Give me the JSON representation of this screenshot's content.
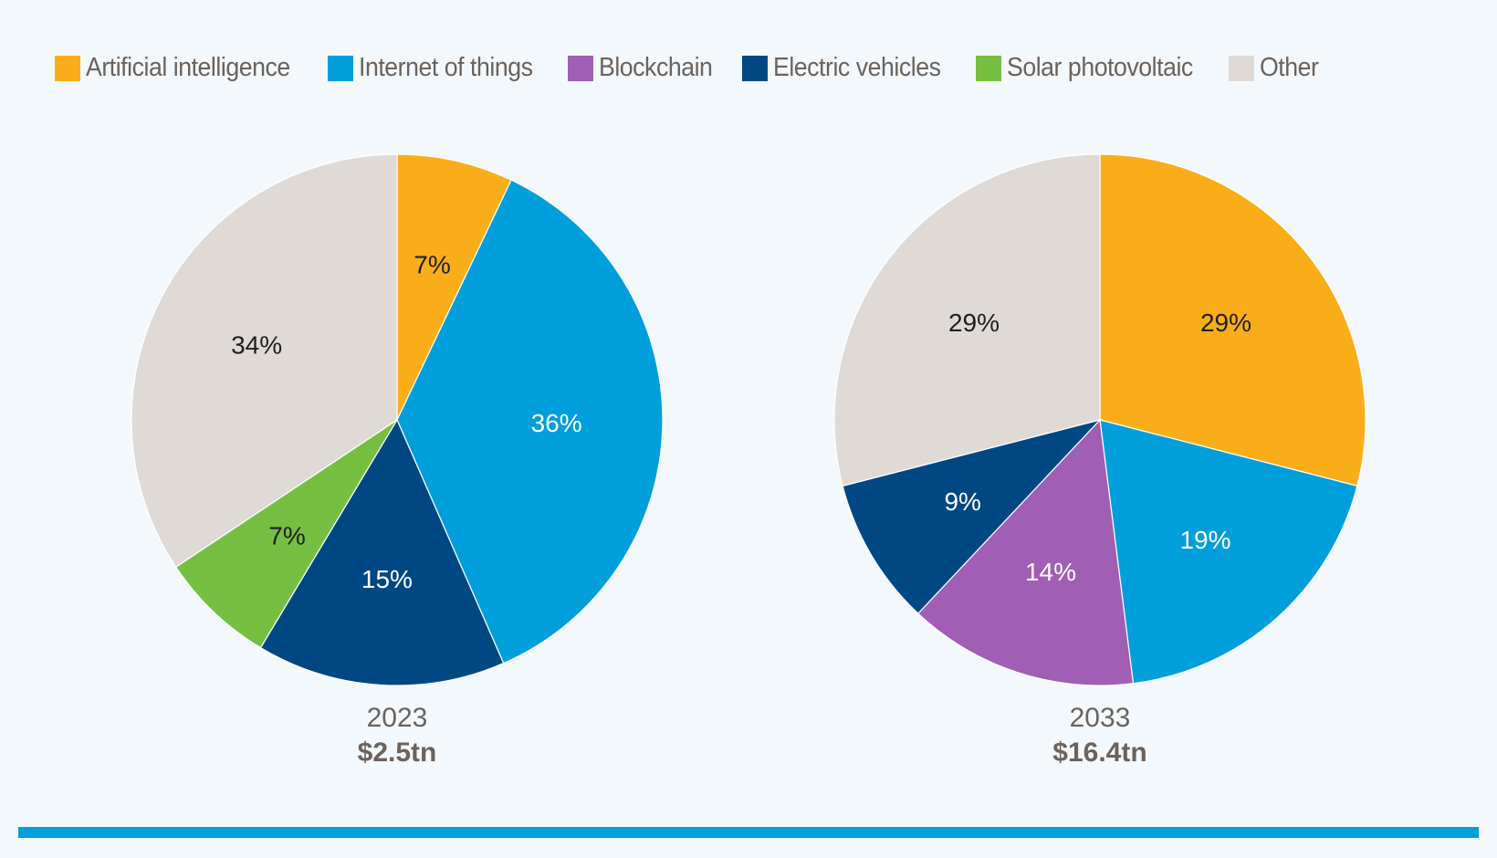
{
  "legend": [
    {
      "label": "Artificial intelligence",
      "color": "#f9ae19"
    },
    {
      "label": "Internet of things",
      "color": "#009fdc"
    },
    {
      "label": "Blockchain",
      "color": "#a05eb5"
    },
    {
      "label": "Electric vehicles",
      "color": "#004883"
    },
    {
      "label": "Solar photovoltaic",
      "color": "#76bf43"
    },
    {
      "label": "Other",
      "color": "#dfdad6"
    }
  ],
  "colors": {
    "background": "#f3f8fc",
    "bottom_bar": "#009fdc",
    "caption_text": "#6b625b",
    "dark_label": "#1f1f1f",
    "light_label": "#ffffff"
  },
  "chart_data": [
    {
      "type": "pie",
      "title": "2023",
      "subtitle": "$2.5tn",
      "start": "12 o'clock, clockwise",
      "slices": [
        {
          "name": "Artificial intelligence",
          "value": 7,
          "label": "7%",
          "color": "#f9ae19"
        },
        {
          "name": "Internet of things",
          "value": 36,
          "label": "36%",
          "color": "#009fdc"
        },
        {
          "name": "Electric vehicles",
          "value": 15,
          "label": "15%",
          "color": "#004883"
        },
        {
          "name": "Solar photovoltaic",
          "value": 7,
          "label": "7%",
          "color": "#76bf43"
        },
        {
          "name": "Other",
          "value": 34,
          "label": "34%",
          "color": "#dfdad6"
        }
      ]
    },
    {
      "type": "pie",
      "title": "2033",
      "subtitle": "$16.4tn",
      "start": "12 o'clock, clockwise",
      "slices": [
        {
          "name": "Artificial intelligence",
          "value": 29,
          "label": "29%",
          "color": "#f9ae19"
        },
        {
          "name": "Internet of things",
          "value": 19,
          "label": "19%",
          "color": "#009fdc"
        },
        {
          "name": "Blockchain",
          "value": 14,
          "label": "14%",
          "color": "#a05eb5"
        },
        {
          "name": "Electric vehicles",
          "value": 9,
          "label": "9%",
          "color": "#004883"
        },
        {
          "name": "Other",
          "value": 29,
          "label": "29%",
          "color": "#dfdad6"
        }
      ]
    }
  ]
}
